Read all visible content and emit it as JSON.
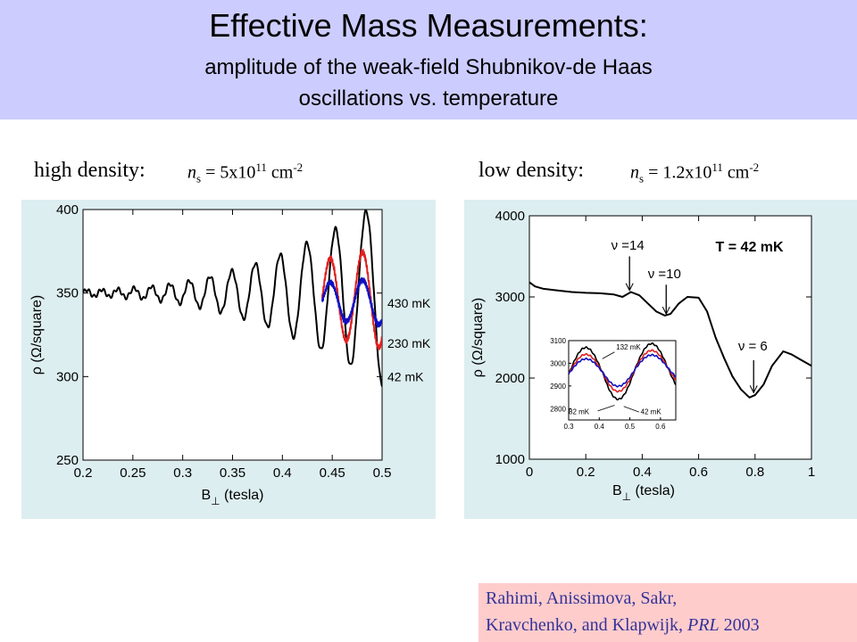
{
  "title": {
    "main": "Effective Mass Measurements:",
    "sub1": "amplitude of the weak-field Shubnikov-de Haas",
    "sub2": "oscillations vs. temperature"
  },
  "left_label": {
    "text": "high density:",
    "n": "n",
    "sub": "s",
    "eq": " = 5x10",
    "sup": "11",
    "unit": " cm",
    "unit_sup": "-2"
  },
  "right_label": {
    "text": "low density:",
    "n": "n",
    "sub": "s",
    "eq": " = 1.2x10",
    "sup": "11",
    "unit": " cm",
    "unit_sup": "-2"
  },
  "citation": {
    "line1": "Rahimi, Anissimova, Sakr,",
    "line2_prefix": "Kravchenko, and Klapwijk, ",
    "journal": "PRL",
    "year": " 2003"
  },
  "colors": {
    "banner": "#ccccff",
    "panel": "#ddeef0",
    "citation_bg": "#ffcccc",
    "citation_text": "#333399",
    "black": "#000000",
    "red": "#e02020",
    "blue": "#1010c0"
  },
  "chart_data": [
    {
      "type": "line",
      "xlabel": "B (tesla)",
      "xlabel_main": "B",
      "xlabel_sub": "⊥",
      "xlabel_unit": "(tesla)",
      "ylabel": "ρ (Ω/square)",
      "xlim": [
        0.2,
        0.5
      ],
      "ylim": [
        250,
        400
      ],
      "xticks": [
        "0.2",
        "0.25",
        "0.3",
        "0.35",
        "0.4",
        "0.45",
        "0.5"
      ],
      "yticks": [
        "250",
        "300",
        "350",
        "400"
      ],
      "series": [
        {
          "name": "42 mK",
          "color": "#000000",
          "x_range": [
            0.2,
            0.5
          ],
          "base": 350,
          "amp_start": 2,
          "amp_end": 55,
          "period_start": 0.0148,
          "period_end": 0.033,
          "phase": 0
        },
        {
          "name": "230 mK",
          "color": "#e02020",
          "x_range": [
            0.44,
            0.5
          ],
          "base": 347,
          "amp_start": 12,
          "amp_end": 30,
          "period_start": 0.028,
          "period_end": 0.033,
          "phase": 0
        },
        {
          "name": "430 mK",
          "color": "#1010c0",
          "x_range": [
            0.44,
            0.5
          ],
          "base": 345,
          "amp_start": 6,
          "amp_end": 14,
          "period_start": 0.028,
          "period_end": 0.033,
          "phase": 0
        }
      ],
      "legend": [
        "430 mK",
        "230 mK",
        "42 mK"
      ]
    },
    {
      "type": "line",
      "xlabel": "B (tesla)",
      "xlabel_main": "B",
      "xlabel_sub": "⊥",
      "xlabel_unit": "(tesla)",
      "ylabel": "ρ (Ω/square)",
      "xlim": [
        0,
        1
      ],
      "ylim": [
        1000,
        4000
      ],
      "xticks": [
        "0",
        "0.2",
        "0.4",
        "0.6",
        "0.8",
        "1"
      ],
      "yticks": [
        "1000",
        "2000",
        "3000",
        "4000"
      ],
      "annotations": [
        "ν = 14",
        "ν = 10",
        "ν = 6",
        "T = 42 mK"
      ],
      "annot_nu14": "ν =14",
      "annot_nu10": "ν =10",
      "annot_nu6": "ν = 6",
      "annot_T": "T = 42 mK",
      "main_series": {
        "name": "T = 42 mK",
        "x": [
          0.0,
          0.02,
          0.05,
          0.1,
          0.15,
          0.2,
          0.25,
          0.3,
          0.33,
          0.36,
          0.39,
          0.42,
          0.45,
          0.48,
          0.5,
          0.53,
          0.56,
          0.6,
          0.63,
          0.66,
          0.69,
          0.72,
          0.75,
          0.78,
          0.8,
          0.83,
          0.86,
          0.9,
          0.93,
          0.96,
          1.0
        ],
        "y": [
          3180,
          3130,
          3100,
          3080,
          3060,
          3050,
          3045,
          3030,
          3000,
          3060,
          3020,
          2920,
          2820,
          2770,
          2790,
          2920,
          3000,
          2990,
          2820,
          2500,
          2250,
          2020,
          1860,
          1760,
          1790,
          1920,
          2150,
          2330,
          2290,
          2230,
          2150
        ]
      },
      "inset": {
        "xlim": [
          0.3,
          0.65
        ],
        "ylim": [
          2750,
          3100
        ],
        "xticks": [
          "0.3",
          "0.4",
          "0.5",
          "0.6"
        ],
        "yticks": [
          "2800",
          "2900",
          "3000",
          "3100"
        ],
        "labels": [
          "132 mK",
          "82 mK",
          "42 mK"
        ],
        "series": [
          {
            "name": "42 mK",
            "color": "#000000",
            "amp": 110
          },
          {
            "name": "82 mK",
            "color": "#e02020",
            "amp": 80
          },
          {
            "name": "132 mK",
            "color": "#1010c0",
            "amp": 60
          }
        ]
      }
    }
  ]
}
